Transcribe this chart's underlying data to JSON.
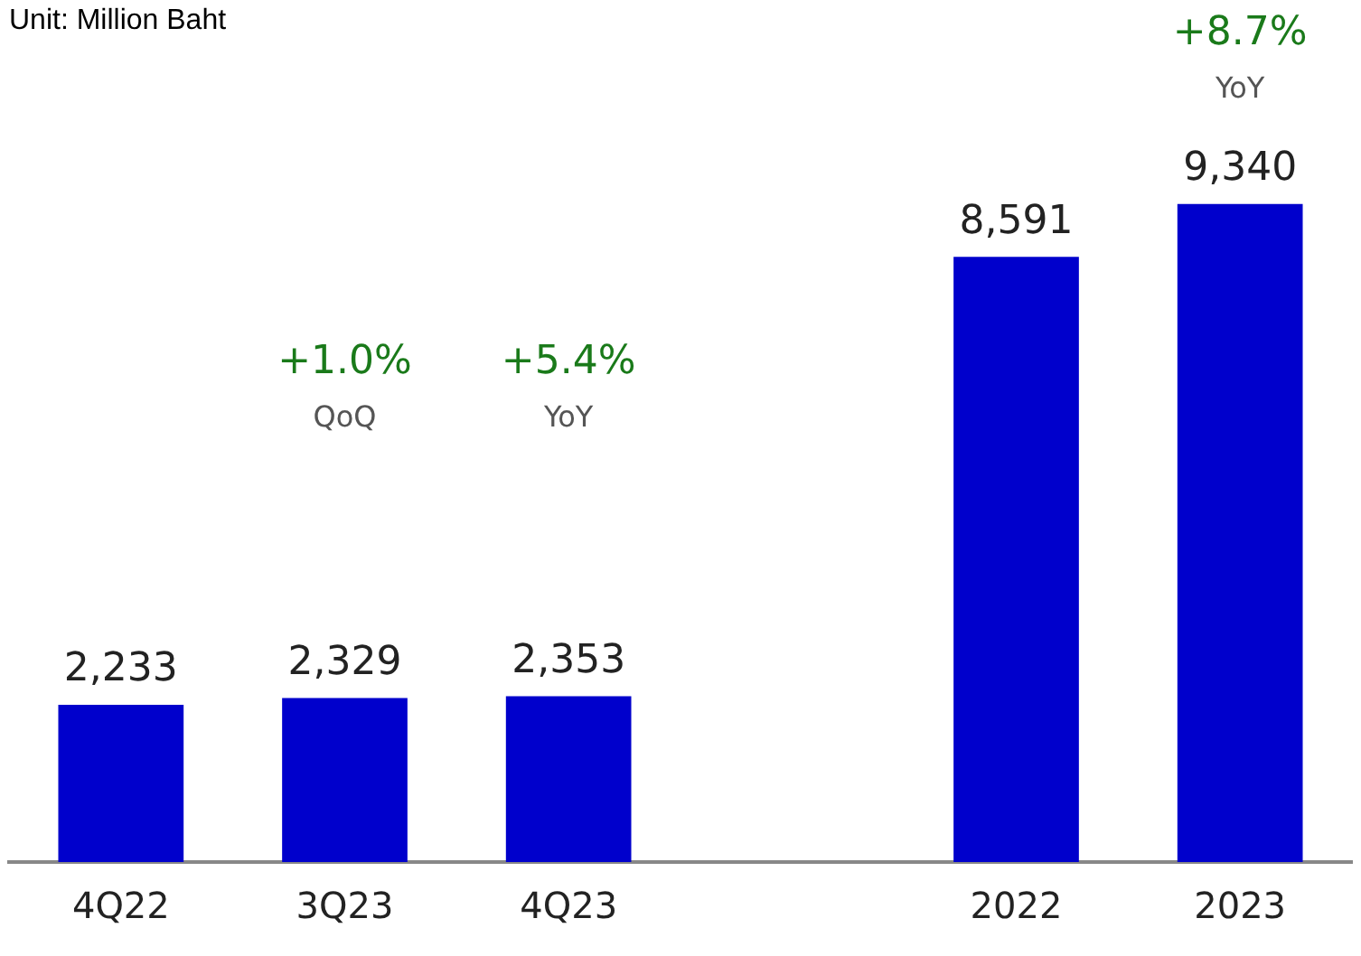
{
  "chart_data": {
    "type": "bar",
    "title": "Unit: Million Baht",
    "categories": [
      "4Q22",
      "3Q23",
      "4Q23",
      null,
      "2022",
      "2023"
    ],
    "values": [
      2233,
      2329,
      2353,
      null,
      8591,
      9340
    ],
    "color": "#0000cc",
    "data_labels": true,
    "grid": false,
    "legend": false,
    "value_labels": [
      "2,233",
      "2,329",
      "2,353",
      null,
      "8,591",
      "9,340"
    ],
    "annotations": [
      "+1.0%",
      "QoQ",
      "+5.4%",
      "YoY",
      "+8.7%",
      "YoY"
    ]
  }
}
